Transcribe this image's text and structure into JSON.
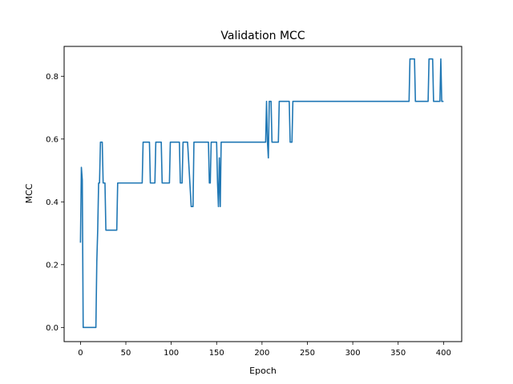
{
  "chart_data": {
    "type": "line",
    "title": "Validation MCC",
    "xlabel": "Epoch",
    "ylabel": "MCC",
    "xlim": [
      -18,
      420
    ],
    "ylim": [
      -0.045,
      0.895
    ],
    "xticks": [
      0,
      50,
      100,
      150,
      200,
      250,
      300,
      350,
      400
    ],
    "yticks": [
      0.0,
      0.2,
      0.4,
      0.6,
      0.8
    ],
    "ytick_labels": [
      "0.0",
      "0.2",
      "0.4",
      "0.6",
      "0.8"
    ],
    "grid": false,
    "series_color": "#1f77b4",
    "series": [
      {
        "name": "",
        "x": [
          0,
          1,
          2,
          3,
          4,
          5,
          6,
          7,
          8,
          9,
          10,
          11,
          12,
          13,
          14,
          15,
          16,
          17,
          18,
          19,
          20,
          21,
          22,
          23,
          24,
          25,
          26,
          27,
          28,
          29,
          30,
          40,
          41,
          42,
          43,
          60,
          68,
          69,
          70,
          76,
          77,
          78,
          82,
          83,
          84,
          89,
          90,
          91,
          98,
          99,
          100,
          107,
          108,
          109,
          110,
          111,
          112,
          113,
          116,
          117,
          118,
          122,
          123,
          124,
          125,
          126,
          130,
          140,
          141,
          142,
          143,
          144,
          148,
          149,
          150,
          151,
          152,
          153,
          154,
          155,
          156,
          157,
          160,
          170,
          180,
          190,
          200,
          204,
          205,
          206,
          207,
          208,
          209,
          210,
          211,
          212,
          213,
          218,
          219,
          220,
          230,
          231,
          232,
          233,
          234,
          235,
          300,
          360,
          362,
          363,
          364,
          368,
          369,
          370,
          380,
          383,
          384,
          388,
          389,
          390,
          395,
          396,
          397,
          398,
          399,
          400
        ],
        "y": [
          0.27,
          0.51,
          0.47,
          0.0,
          0.0,
          0.0,
          0.0,
          0.0,
          0.0,
          0.0,
          0.0,
          0.0,
          0.0,
          0.0,
          0.0,
          0.0,
          0.0,
          0.0,
          0.21,
          0.31,
          0.46,
          0.46,
          0.59,
          0.59,
          0.59,
          0.46,
          0.46,
          0.46,
          0.31,
          0.31,
          0.31,
          0.31,
          0.46,
          0.46,
          0.46,
          0.46,
          0.46,
          0.59,
          0.59,
          0.59,
          0.46,
          0.46,
          0.46,
          0.59,
          0.59,
          0.59,
          0.46,
          0.46,
          0.46,
          0.59,
          0.59,
          0.59,
          0.59,
          0.59,
          0.46,
          0.46,
          0.46,
          0.59,
          0.59,
          0.59,
          0.59,
          0.385,
          0.385,
          0.385,
          0.59,
          0.59,
          0.59,
          0.59,
          0.59,
          0.46,
          0.46,
          0.59,
          0.59,
          0.59,
          0.59,
          0.46,
          0.385,
          0.54,
          0.385,
          0.59,
          0.59,
          0.59,
          0.59,
          0.59,
          0.59,
          0.59,
          0.59,
          0.59,
          0.72,
          0.59,
          0.54,
          0.72,
          0.72,
          0.72,
          0.59,
          0.59,
          0.59,
          0.59,
          0.72,
          0.72,
          0.72,
          0.59,
          0.59,
          0.59,
          0.72,
          0.72,
          0.72,
          0.72,
          0.72,
          0.855,
          0.855,
          0.855,
          0.72,
          0.72,
          0.72,
          0.72,
          0.855,
          0.855,
          0.72,
          0.72,
          0.72,
          0.72,
          0.855,
          0.72,
          0.72,
          0.72
        ]
      }
    ]
  }
}
